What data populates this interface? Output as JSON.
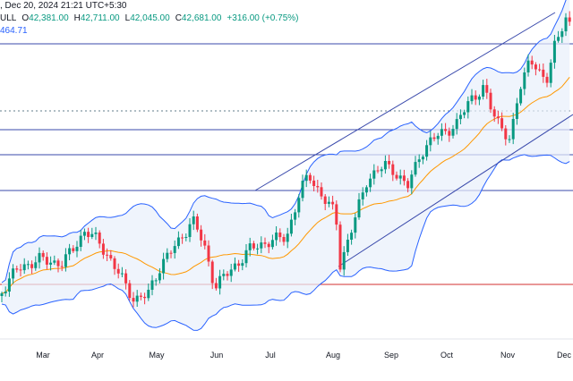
{
  "header": {
    "date_time": ", Dec 20, 2024 21:21 UTC+5:30",
    "symbol_fragment": "ULL",
    "open_label": "O",
    "open": "42,381.00",
    "high_label": "H",
    "high": "42,711.00",
    "low_label": "L",
    "low": "42,045.00",
    "close_label": "C",
    "close": "42,681.00",
    "change": "+316.00 (+0.75%)",
    "indicator_value": "464.71"
  },
  "colors": {
    "up": "#089981",
    "down": "#f23645",
    "band_line": "#2962ff",
    "band_fill": "#e8f0fb",
    "basis": "#ff9800",
    "level": "#3949ab",
    "support": "#d32f2f"
  },
  "chart_data": {
    "type": "candlestick",
    "x_labels": [
      "Mar",
      "Apr",
      "May",
      "Jun",
      "Jul",
      "Aug",
      "Sep",
      "Oct",
      "Nov",
      "Dec"
    ],
    "overlays": [
      "bollinger-bands",
      "trend-channel",
      "horizontal-levels"
    ],
    "grid": false
  }
}
